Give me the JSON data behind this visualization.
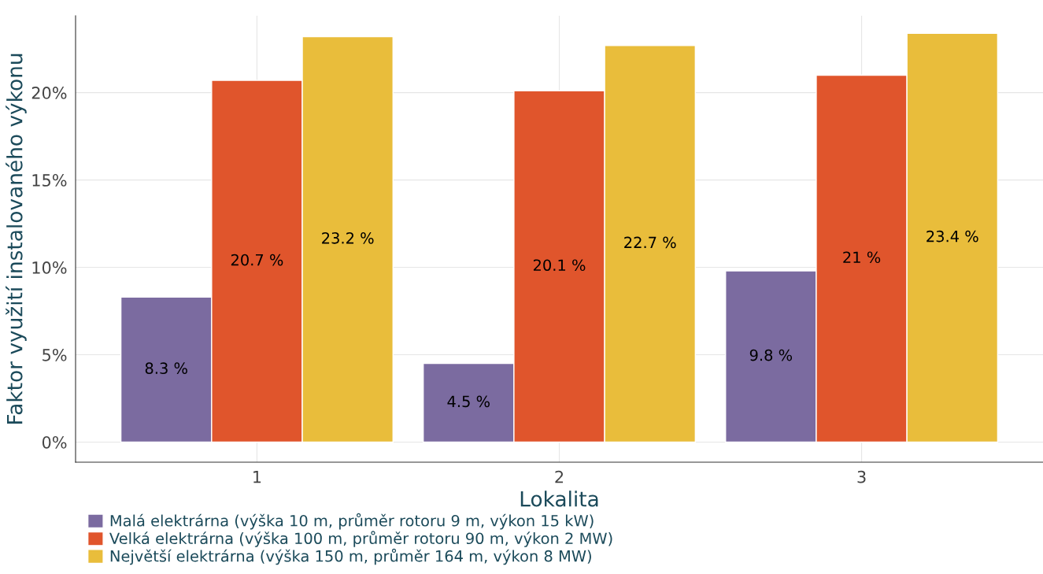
{
  "chart_data": {
    "type": "bar",
    "xlabel": "Lokalita",
    "ylabel": "Faktor využití instalovaného výkonu",
    "categories": [
      "1",
      "2",
      "3"
    ],
    "series": [
      {
        "name": "Malá elektrárna (výška 10 m, průměr rotoru 9 m, výkon 15 kW)",
        "color": "#7b6ba0",
        "values": [
          8.3,
          4.5,
          9.8
        ],
        "value_labels": [
          "8.3 %",
          "4.5 %",
          "9.8 %"
        ]
      },
      {
        "name": "Velká elektrárna (výška 100 m, průměr rotoru 90 m, výkon 2 MW)",
        "color": "#e0552c",
        "values": [
          20.7,
          20.1,
          21
        ],
        "value_labels": [
          "20.7 %",
          "20.1 %",
          "21 %"
        ]
      },
      {
        "name": "Největší elektrárna (výška 150 m, průměr 164 m, výkon 8 MW)",
        "color": "#e9bd3b",
        "values": [
          23.2,
          22.7,
          23.4
        ],
        "value_labels": [
          "23.2 %",
          "22.7 %",
          "23.4 %"
        ]
      }
    ],
    "ylim": [
      -1.15,
      24.4
    ],
    "yticks": [
      {
        "value": 0,
        "label": "0%"
      },
      {
        "value": 5,
        "label": "5%"
      },
      {
        "value": 10,
        "label": "10%"
      },
      {
        "value": 15,
        "label": "15%"
      },
      {
        "value": 20,
        "label": "20%"
      }
    ],
    "grid": true,
    "legend": "bottom left"
  }
}
